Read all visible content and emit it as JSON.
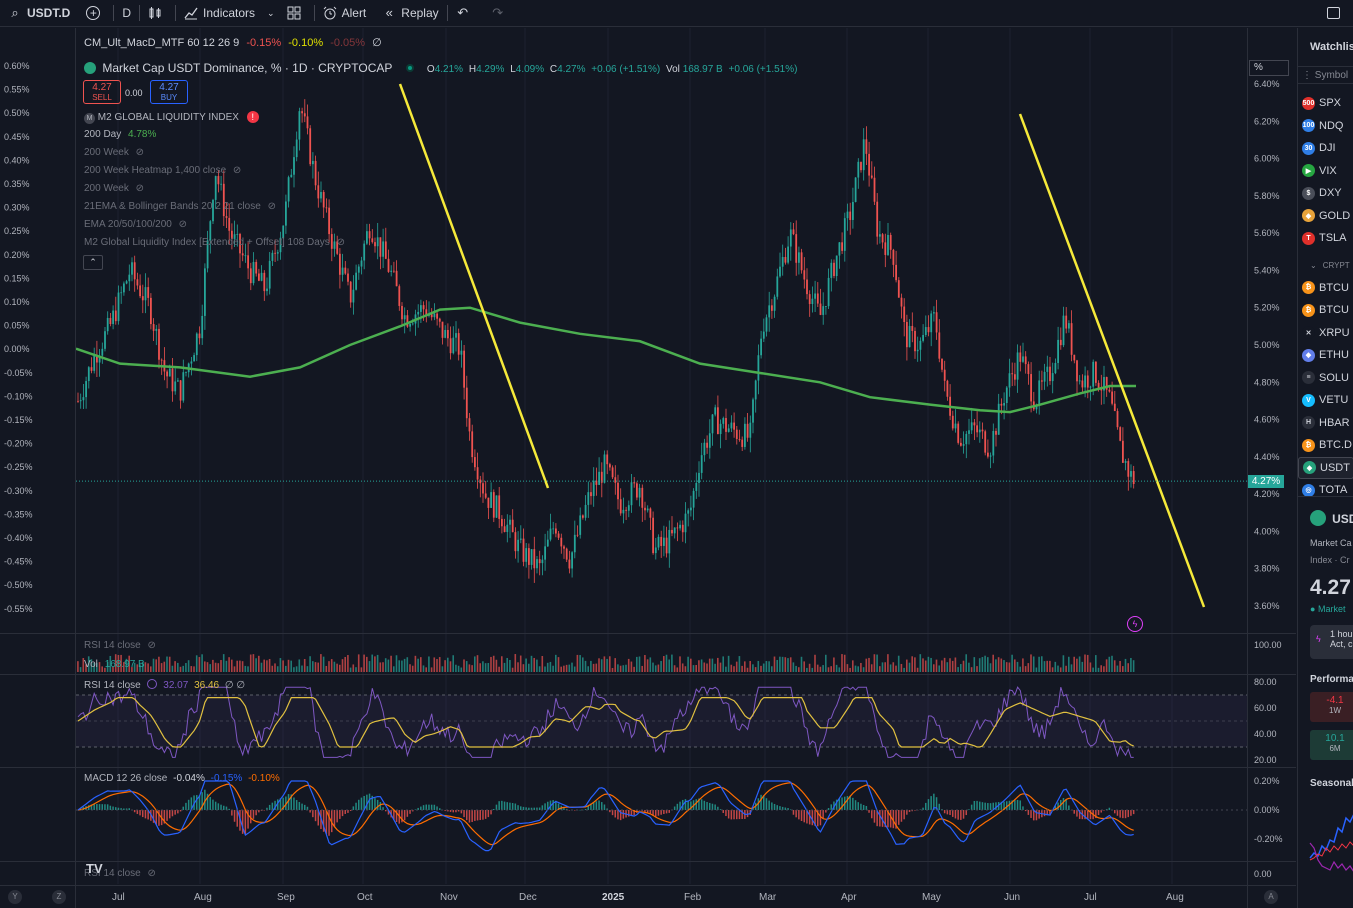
{
  "toolbar": {
    "symbol": "USDT.D",
    "interval": "D",
    "indicators": "Indicators",
    "alert": "Alert",
    "replay": "Replay"
  },
  "legends": {
    "top_indicator": "CM_Ult_MacD_MTF 60 12 26 9",
    "top_val1": "-0.15%",
    "top_val2": "-0.10%",
    "top_val3": "-0.05%",
    "main_title": "Market Cap USDT Dominance, % · 1D · CRYPTOCAP",
    "o_label": "O",
    "o_val": "4.21%",
    "h_label": "H",
    "h_val": "4.29%",
    "l_label": "L",
    "l_val": "4.09%",
    "c_label": "C",
    "c_val": "4.27%",
    "change": "+0.06 (+1.51%)",
    "vol_label": "Vol",
    "vol_val": "168.97 B",
    "vol_change": "+0.06 (+1.51%)",
    "sell_price": "4.27",
    "sell_label": "SELL",
    "spread": "0.00",
    "buy_price": "4.27",
    "buy_label": "BUY",
    "ind1": "M2 GLOBAL LIQUIDITY INDEX",
    "ind2": "200 Day",
    "ind2_val": "4.78%",
    "ind3": "200 Week",
    "ind4": "200 Week Heatmap 1,400 close",
    "ind5": "200 Week",
    "ind6": "21EMA & Bollinger Bands 20 2 21 close",
    "ind7": "EMA 20/50/100/200",
    "ind8": "M2 Global Liquidity Index [Extended + Offset] 108 Days",
    "rsi_faded": "RSI 14 close",
    "vol_legend": "Vol",
    "vol_legend_val": "168.97 B",
    "rsi_title": "RSI 14 close",
    "rsi_v1": "32.07",
    "rsi_v2": "36.46",
    "rsi_v3": "∅ ∅",
    "macd_title": "MACD 12 26 close",
    "macd_v1": "-0.04%",
    "macd_v2": "-0.15%",
    "macd_v3": "-0.10%",
    "bottom_faded": "RSI 14 close",
    "percent_badge": "%"
  },
  "scales": {
    "main_right": [
      "6.40%",
      "6.20%",
      "6.00%",
      "5.80%",
      "5.60%",
      "5.40%",
      "5.20%",
      "5.00%",
      "4.80%",
      "4.60%",
      "4.40%",
      "4.20%",
      "4.00%",
      "3.80%",
      "3.60%"
    ],
    "left": [
      "0.60%",
      "0.55%",
      "0.50%",
      "0.45%",
      "0.40%",
      "0.35%",
      "0.30%",
      "0.25%",
      "0.20%",
      "0.15%",
      "0.10%",
      "0.05%",
      "0.00%",
      "-0.05%",
      "-0.10%",
      "-0.15%",
      "-0.20%",
      "-0.25%",
      "-0.30%",
      "-0.35%",
      "-0.40%",
      "-0.45%",
      "-0.50%",
      "-0.55%"
    ],
    "vol_right": "100.00",
    "rsi_right": [
      "80.00",
      "60.00",
      "40.00",
      "20.00"
    ],
    "macd_right": [
      "0.20%",
      "0.00%",
      "-0.20%"
    ],
    "bottom_right": "0.00",
    "current_price": "4.27%",
    "x_labels": [
      "Jul",
      "Aug",
      "Sep",
      "Oct",
      "Nov",
      "Dec",
      "2025",
      "Feb",
      "Mar",
      "Apr",
      "May",
      "Jun",
      "Jul",
      "Aug"
    ]
  },
  "watchlist": {
    "title": "Watchlis",
    "symbol_header": "Symbol",
    "items": [
      {
        "label": "SPX",
        "icon": "500",
        "color": "#e0302b"
      },
      {
        "label": "NDQ",
        "icon": "100",
        "color": "#2f7ee6"
      },
      {
        "label": "DJI",
        "icon": "30",
        "color": "#2f7ee6"
      },
      {
        "label": "VIX",
        "icon": "▶",
        "color": "#26a641"
      },
      {
        "label": "DXY",
        "icon": "$",
        "color": "#4a4e59"
      },
      {
        "label": "GOLD",
        "icon": "◆",
        "color": "#e8a33a"
      },
      {
        "label": "TSLA",
        "icon": "T",
        "color": "#e0302b"
      },
      {
        "label": "CRYPT",
        "icon": "",
        "color": ""
      },
      {
        "label": "BTCU",
        "icon": "₿",
        "color": "#f7931a"
      },
      {
        "label": "BTCU",
        "icon": "₿",
        "color": "#f7931a"
      },
      {
        "label": "XRPU",
        "icon": "✕",
        "color": "#131722"
      },
      {
        "label": "ETHU",
        "icon": "◆",
        "color": "#627eea"
      },
      {
        "label": "SOLU",
        "icon": "≡",
        "color": "#2a2e39"
      },
      {
        "label": "VETU",
        "icon": "V",
        "color": "#15bdff"
      },
      {
        "label": "HBAR",
        "icon": "H",
        "color": "#2a2e39"
      },
      {
        "label": "BTC.D",
        "icon": "₿",
        "color": "#f7931a"
      },
      {
        "label": "USDT",
        "icon": "◆",
        "color": "#26a17b"
      },
      {
        "label": "TOTA",
        "icon": "◎",
        "color": "#2f7ee6"
      }
    ],
    "detail_symbol": "USD",
    "detail_desc1": "Market Ca",
    "detail_desc2": "Index · Cr",
    "detail_price": "4.27",
    "detail_status": "Market",
    "detail_news1": "1 hou",
    "detail_news2": "Act, c",
    "performance": "Performa",
    "perf1_val": "-4.1",
    "perf1_period": "1W",
    "perf2_val": "10.1",
    "perf2_period": "6M",
    "seasonal": "Seasonal"
  }
}
